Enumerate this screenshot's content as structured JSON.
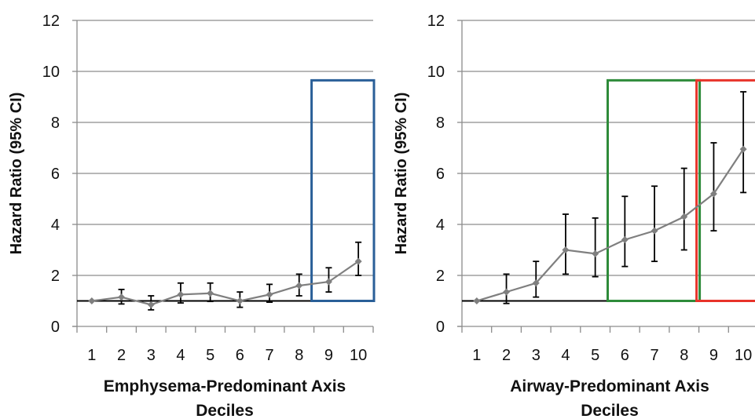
{
  "chart_data": [
    {
      "type": "line",
      "title": "",
      "xlabel": "Emphysema-Predominant Axis\nDeciles",
      "ylabel": "Hazard Ratio (95% CI)",
      "categories": [
        "1",
        "2",
        "3",
        "4",
        "5",
        "6",
        "7",
        "8",
        "9",
        "10"
      ],
      "ylim": [
        0,
        12
      ],
      "yticks": [
        "0",
        "2",
        "4",
        "6",
        "8",
        "10",
        "12"
      ],
      "grid": "horizontal",
      "reference_line": 1,
      "series": [
        {
          "values": [
            1.0,
            1.15,
            0.85,
            1.25,
            1.3,
            1.0,
            1.25,
            1.6,
            1.75,
            2.55
          ],
          "ci_low": [
            1.0,
            0.88,
            0.65,
            0.92,
            0.98,
            0.75,
            0.95,
            1.2,
            1.35,
            2.0
          ],
          "ci_high": [
            1.0,
            1.45,
            1.2,
            1.7,
            1.7,
            1.35,
            1.65,
            2.05,
            2.3,
            3.3
          ]
        }
      ],
      "highlights": [
        {
          "color": "#2a5f98",
          "x_from": 9,
          "x_to": 10
        }
      ]
    },
    {
      "type": "line",
      "title": "",
      "xlabel": "Airway-Predominant Axis\nDeciles",
      "ylabel": "Hazard Ratio (95% CI)",
      "categories": [
        "1",
        "2",
        "3",
        "4",
        "5",
        "6",
        "7",
        "8",
        "9",
        "10"
      ],
      "ylim": [
        0,
        12
      ],
      "yticks": [
        "0",
        "2",
        "4",
        "6",
        "8",
        "10",
        "12"
      ],
      "grid": "horizontal",
      "reference_line": 1,
      "series": [
        {
          "values": [
            1.0,
            1.35,
            1.7,
            3.0,
            2.85,
            3.4,
            3.75,
            4.3,
            5.2,
            6.95
          ],
          "ci_low": [
            1.0,
            0.9,
            1.15,
            2.05,
            1.95,
            2.35,
            2.55,
            3.0,
            3.75,
            5.25
          ],
          "ci_high": [
            1.0,
            2.05,
            2.55,
            4.4,
            4.25,
            5.1,
            5.5,
            6.2,
            7.2,
            9.2
          ]
        }
      ],
      "highlights": [
        {
          "color": "#2e8b3a",
          "x_from": 6,
          "x_to": 8
        },
        {
          "color": "#e8332a",
          "x_from": 9,
          "x_to": 10
        }
      ]
    }
  ]
}
